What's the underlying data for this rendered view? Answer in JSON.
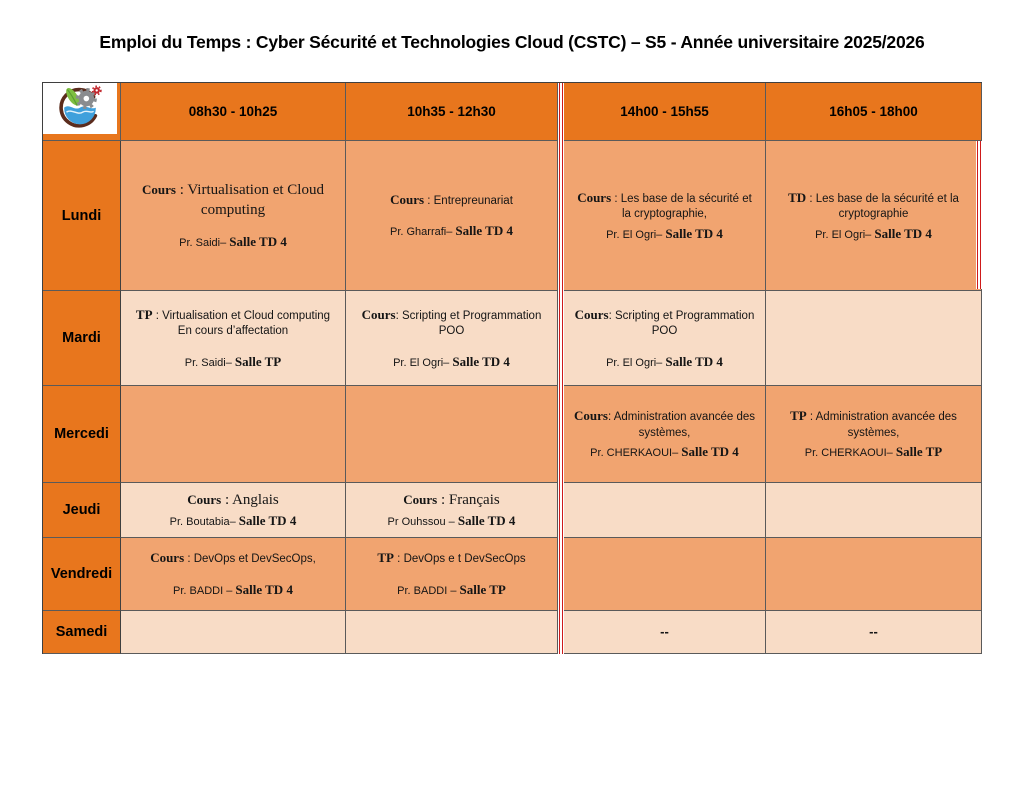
{
  "title": "Emploi du Temps : Cyber Sécurité et Technologies Cloud (CSTC) – S5 - Année universitaire 2025/2026",
  "colors": {
    "header_orange": "#e8761d",
    "row_medium_peach": "#f1a470",
    "row_light_peach": "#f8dcc6",
    "divider_red": "#ce1a1a",
    "logo_leaf_green": "#7fbe41",
    "logo_gear_gray": "#8a8c8f",
    "logo_gear_red": "#c1272d",
    "logo_water_blue": "#3fa0dc",
    "logo_arc_brown": "#5b2c1d"
  },
  "logo": {
    "name": "school-logo",
    "elements": [
      "green-leaf",
      "gray-gear",
      "red-gear",
      "blue-water-wave",
      "dark-arc"
    ]
  },
  "table": {
    "times": [
      "08h30 - 10h25",
      "10h35 - 12h30",
      "14h00 - 15h55",
      "16h05 - 18h00"
    ],
    "rows": [
      {
        "day": "Lundi",
        "shade": "dark",
        "cells": [
          {
            "type": "Cours",
            "sep": " : ",
            "title": "Virtualisation et Cloud computing",
            "serif": true,
            "prof": "Pr. Saidi–",
            "salle": "Salle TD 4",
            "gap": true
          },
          {
            "type": "Cours",
            "sep": " : ",
            "title": "Entrepreunariat",
            "prof": "Pr. Gharrafi–",
            "salle": "Salle TD 4",
            "gap": true
          },
          {
            "type": "Cours",
            "sep": " : ",
            "title": "Les base de la sécurité et la cryptographie,",
            "prof": "Pr. El Ogri–",
            "salle": "Salle TD 4"
          },
          {
            "type": "TD",
            "sep": " : ",
            "title": "Les base de la sécurité et la cryptographie",
            "prof": "Pr. El Ogri–",
            "salle": "Salle TD 4"
          }
        ]
      },
      {
        "day": "Mardi",
        "shade": "light",
        "cells": [
          {
            "type": "TP",
            "sep": " : ",
            "title": "Virtualisation et Cloud computing",
            "note": "En cours d’affectation",
            "prof": "Pr. Saidi–",
            "salle": "Salle TP",
            "gap": true
          },
          {
            "type": "Cours",
            "sep": ": ",
            "title": "Scripting et Programmation POO",
            "prof": "Pr. El Ogri–",
            "salle": "Salle TD 4",
            "gap": true
          },
          {
            "type": "Cours",
            "sep": ": ",
            "title": "Scripting et Programmation POO",
            "prof": "Pr. El Ogri–",
            "salle": "Salle TD 4",
            "gap": true
          },
          {}
        ]
      },
      {
        "day": "Mercedi",
        "shade": "dark",
        "cells": [
          {},
          {},
          {
            "type": "Cours",
            "sep": ": ",
            "title": "Administration avancée des systèmes,",
            "prof": "Pr. CHERKAOUI–",
            "salle": "Salle TD 4"
          },
          {
            "type": "TP",
            "sep": " : ",
            "title": "Administration avancée des systèmes,",
            "prof": "Pr. CHERKAOUI–",
            "salle": "Salle TP"
          }
        ]
      },
      {
        "day": "Jeudi",
        "shade": "light",
        "cells": [
          {
            "type": "Cours",
            "sep": " : ",
            "title": "Anglais",
            "serif": true,
            "prof": "Pr. Boutabia–",
            "salle": "Salle TD 4"
          },
          {
            "type": "Cours",
            "sep": " : ",
            "title": "Français",
            "serif": true,
            "prof": "Pr Ouhssou –",
            "salle": "Salle TD 4"
          },
          {},
          {}
        ]
      },
      {
        "day": "Vendredi",
        "shade": "dark",
        "cells": [
          {
            "type": "Cours",
            "sep": " : ",
            "title": "DevOps et DevSecOps,",
            "prof": "Pr. BADDI –",
            "salle": "Salle TD 4",
            "gap": true
          },
          {
            "type": "TP",
            "sep": " : ",
            "title": "DevOps e t DevSecOps",
            "prof": "Pr. BADDI –",
            "salle": "Salle TP",
            "gap": true
          },
          {},
          {}
        ]
      },
      {
        "day": "Samedi",
        "shade": "light",
        "cells": [
          {},
          {},
          {
            "text": "--"
          },
          {
            "text": "--"
          }
        ]
      }
    ]
  }
}
